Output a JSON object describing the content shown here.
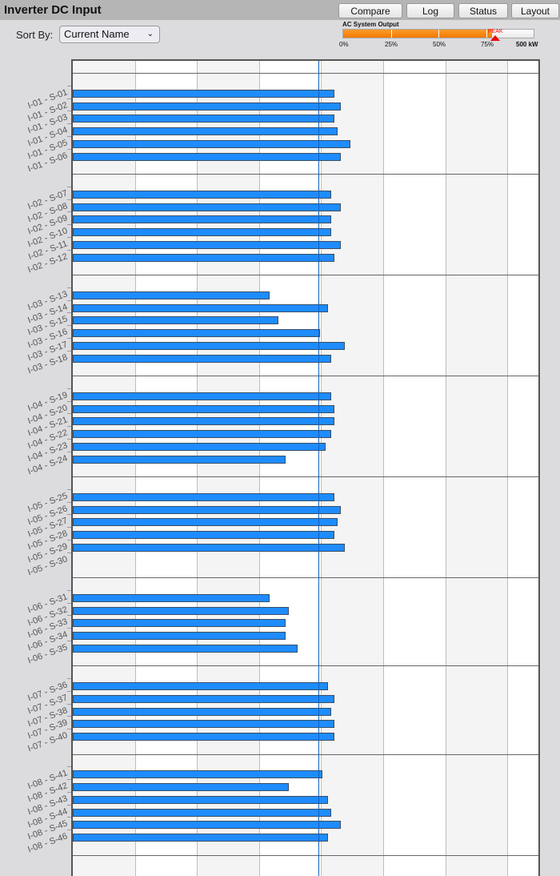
{
  "header": {
    "title": "Inverter DC Input",
    "buttons": [
      "Compare",
      "Log",
      "Status",
      "Layout"
    ]
  },
  "sort": {
    "label": "Sort By:",
    "selected": "Current Name"
  },
  "gauge": {
    "title": "AC System Output",
    "ticks": [
      "0%",
      "25%",
      "50%",
      "75%"
    ],
    "max_label": "500 kW",
    "peak_label": "PEAK",
    "fill_percent": 78,
    "peak_percent": 80,
    "fill_color": "#f58a10",
    "peak_color": "#e00000"
  },
  "chart_data": {
    "type": "bar",
    "orientation": "horizontal",
    "title": "",
    "xlabel": "",
    "ylabel": "",
    "xlim": [
      0,
      7.5
    ],
    "grid": true,
    "reference_line": 3.95,
    "bar_color": "#1e8cff",
    "reference_color": "#1060c0",
    "groups": [
      {
        "labels": [
          "I-01 - S-01",
          "I-01 - S-02",
          "I-01 - S-03",
          "I-01 - S-04",
          "I-01 - S-05",
          "I-01 - S-06"
        ],
        "values": [
          4.19,
          4.29,
          4.19,
          4.24,
          4.45,
          4.29
        ]
      },
      {
        "labels": [
          "I-02 - S-07",
          "I-02 - S-08",
          "I-02 - S-09",
          "I-02 - S-10",
          "I-02 - S-11",
          "I-02 - S-12"
        ],
        "values": [
          4.14,
          4.29,
          4.14,
          4.14,
          4.29,
          4.19
        ]
      },
      {
        "labels": [
          "I-03 - S-13",
          "I-03 - S-14",
          "I-03 - S-15",
          "I-03 - S-16",
          "I-03 - S-17",
          "I-03 - S-18"
        ],
        "values": [
          3.14,
          4.09,
          3.29,
          3.95,
          4.35,
          4.14
        ]
      },
      {
        "labels": [
          "I-04 - S-19",
          "I-04 - S-20",
          "I-04 - S-21",
          "I-04 - S-22",
          "I-04 - S-23",
          "I-04 - S-24"
        ],
        "values": [
          4.14,
          4.19,
          4.19,
          4.14,
          4.04,
          3.4
        ]
      },
      {
        "labels": [
          "I-05 - S-25",
          "I-05 - S-26",
          "I-05 - S-27",
          "I-05 - S-28",
          "I-05 - S-29",
          "I-05 - S-30"
        ],
        "values": [
          4.19,
          4.29,
          4.24,
          4.19,
          4.35,
          null
        ]
      },
      {
        "labels": [
          "I-06 - S-31",
          "I-06 - S-32",
          "I-06 - S-33",
          "I-06 - S-34",
          "I-06 - S-35"
        ],
        "values": [
          3.14,
          3.45,
          3.4,
          3.4,
          3.59
        ]
      },
      {
        "labels": [
          "I-07 - S-36",
          "I-07 - S-37",
          "I-07 - S-38",
          "I-07 - S-39",
          "I-07 - S-40"
        ],
        "values": [
          4.09,
          4.19,
          4.14,
          4.19,
          4.19
        ]
      },
      {
        "labels": [
          "I-08 - S-41",
          "I-08 - S-42",
          "I-08 - S-43",
          "I-08 - S-44",
          "I-08 - S-45",
          "I-08 - S-46"
        ],
        "values": [
          4.0,
          3.45,
          4.09,
          4.14,
          4.29,
          4.09
        ]
      }
    ]
  }
}
